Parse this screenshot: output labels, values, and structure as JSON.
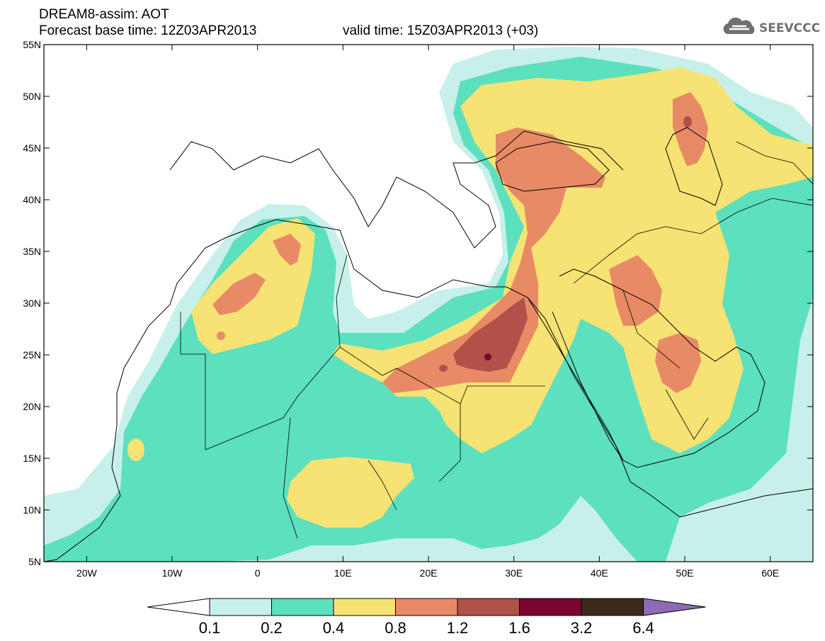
{
  "header": {
    "line1": "DREAM8-assim: AOT",
    "line2": "Forecast base time: 12Z03APR2013",
    "valid": "valid time: 15Z03APR2013 (+03)"
  },
  "logo": {
    "text": "SEEVCCC",
    "icon": "cloud-icon"
  },
  "map": {
    "lon_range": [
      -25,
      65
    ],
    "lat_range": [
      5,
      55
    ],
    "lat_ticks": [
      "5N",
      "10N",
      "15N",
      "20N",
      "25N",
      "30N",
      "35N",
      "40N",
      "45N",
      "50N",
      "55N"
    ],
    "lon_ticks": [
      "20W",
      "10W",
      "0",
      "10E",
      "20E",
      "30E",
      "40E",
      "50E",
      "60E"
    ],
    "lon_tick_values": [
      -20,
      -10,
      0,
      10,
      20,
      30,
      40,
      50,
      60
    ],
    "lat_tick_values": [
      5,
      10,
      15,
      20,
      25,
      30,
      35,
      40,
      45,
      50,
      55
    ]
  },
  "legend": {
    "labels": [
      "0.1",
      "0.2",
      "0.4",
      "0.8",
      "1.2",
      "1.6",
      "3.2",
      "6.4"
    ],
    "colors": [
      "#ffffff",
      "#c7f0ea",
      "#5ce0bd",
      "#f7e373",
      "#e88a65",
      "#b2504a",
      "#7a0530",
      "#3d2a1a",
      "#8b6bb5"
    ]
  }
}
